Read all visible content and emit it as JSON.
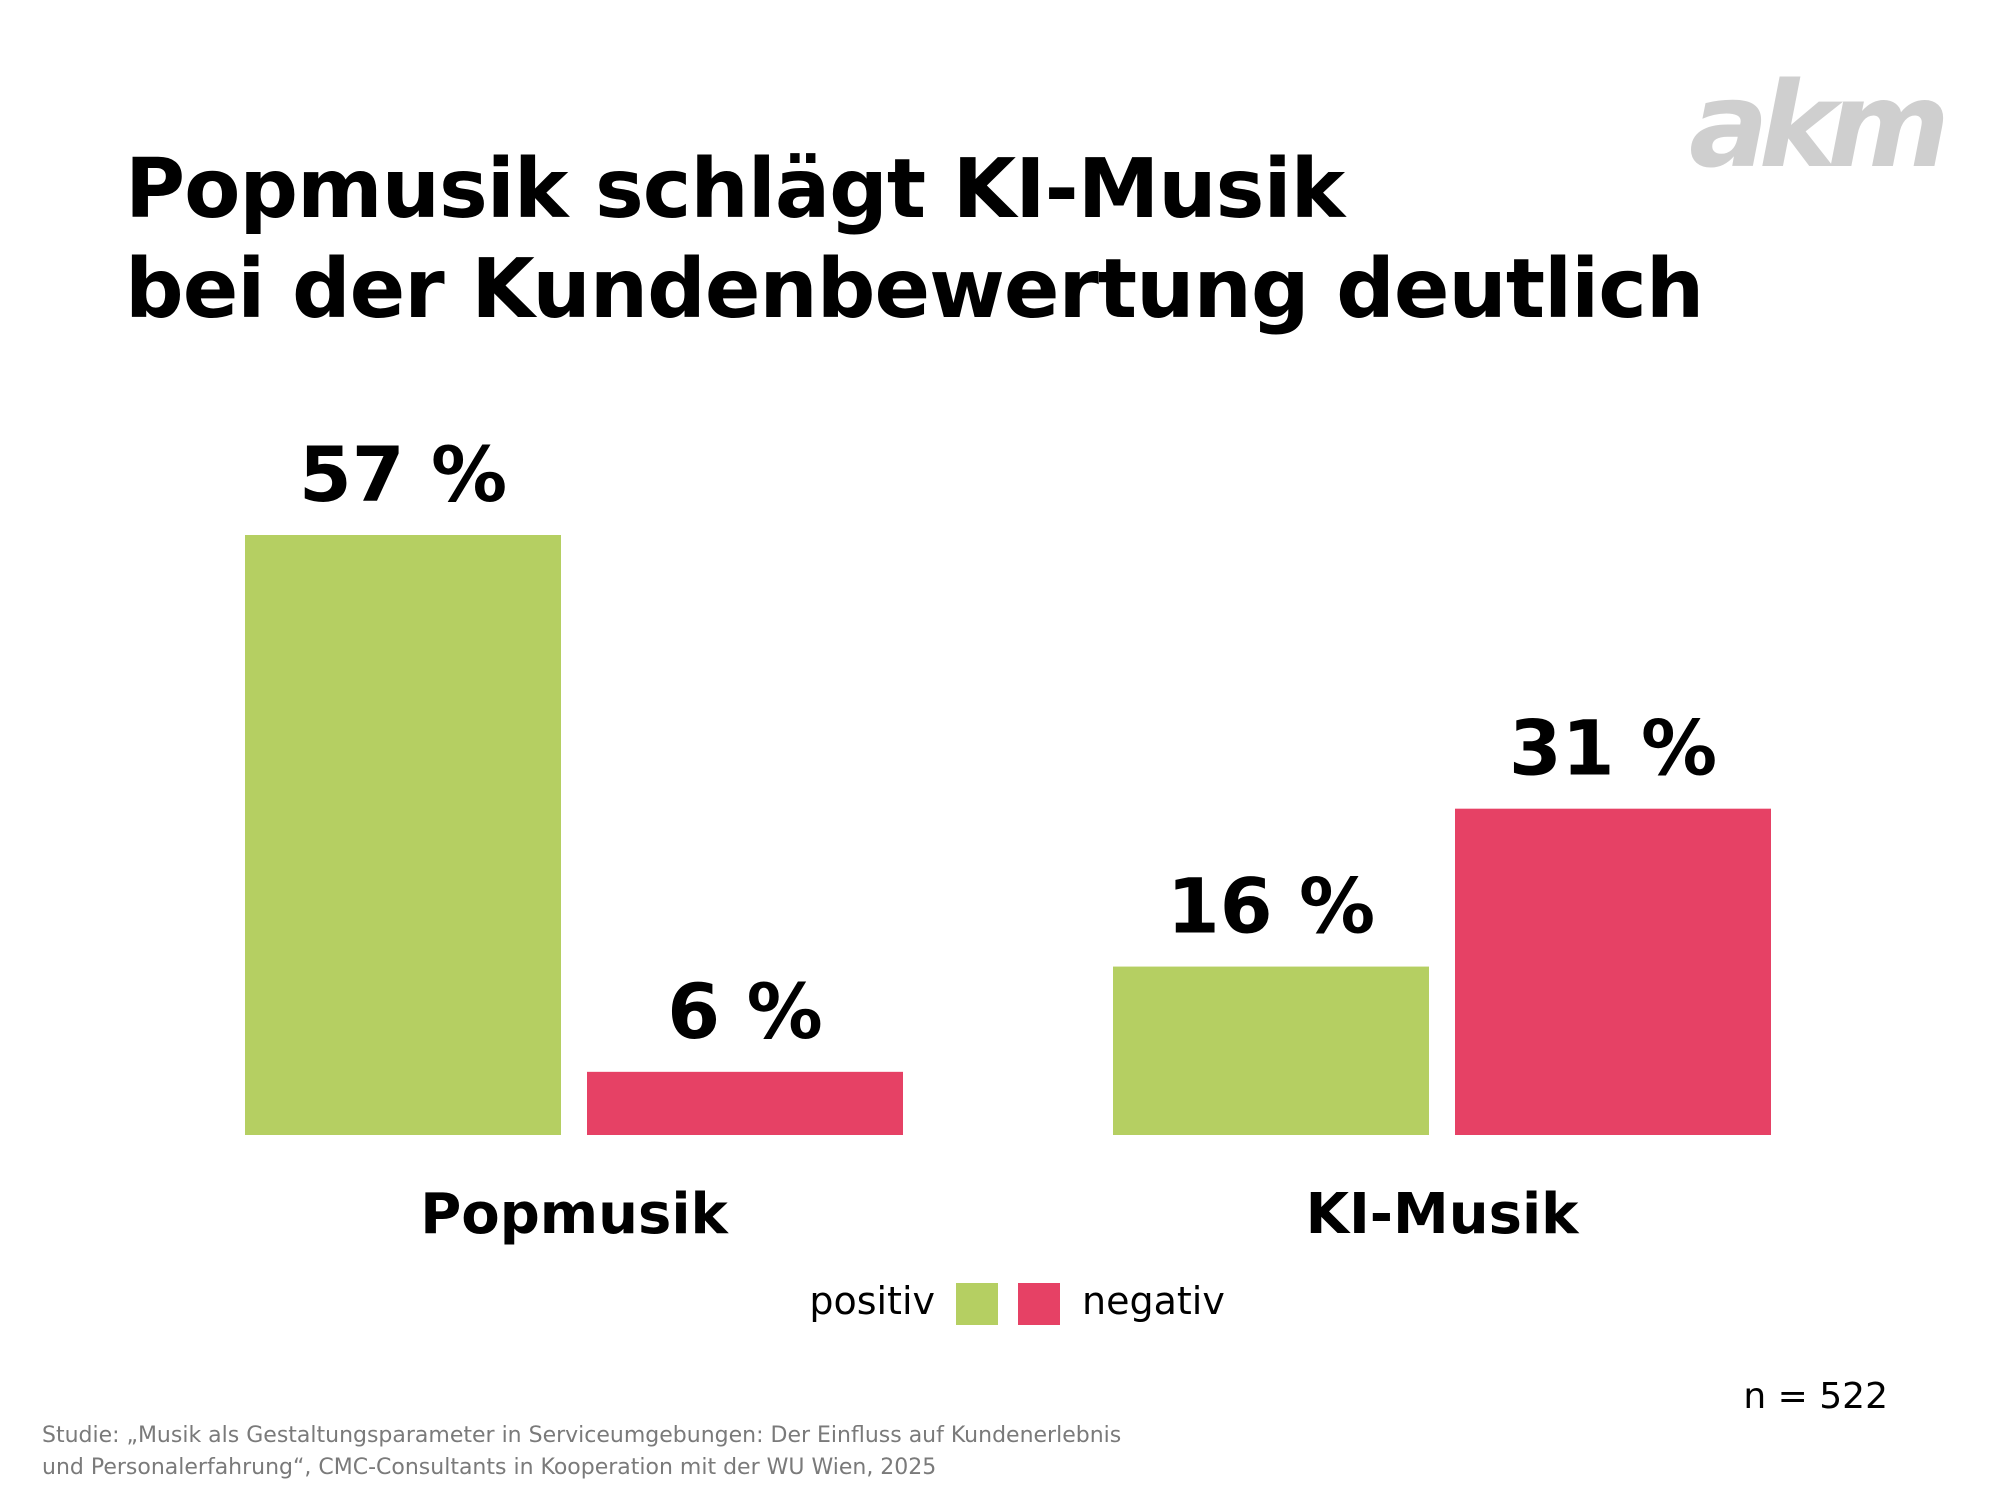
{
  "logo": {
    "text": "akm",
    "color": "#cfcfcf"
  },
  "title_lines": [
    "Popmusik schlägt KI-Musik",
    "bei der Kundenbewertung deutlich"
  ],
  "n_label": "n = 522",
  "source_lines": [
    "Studie: „Musik als Gestaltungsparameter in Serviceumgebungen: Der Einfluss auf Kundenerlebnis",
    "und Personalerfahrung“, CMC-Consultants in Kooperation mit der WU Wien, 2025"
  ],
  "colors": {
    "positiv": "#b5cf62",
    "negativ": "#e64165"
  },
  "chart_data": {
    "type": "bar",
    "categories": [
      "Popmusik",
      "KI-Musik"
    ],
    "series": [
      {
        "name": "positiv",
        "values": [
          57,
          16
        ],
        "labels": [
          "57 %",
          "16 %"
        ]
      },
      {
        "name": "negativ",
        "values": [
          6,
          31
        ],
        "labels": [
          "6 %",
          "31 %"
        ]
      }
    ],
    "ylim": [
      0,
      57
    ],
    "grid": false,
    "legend": "bottom-center"
  }
}
